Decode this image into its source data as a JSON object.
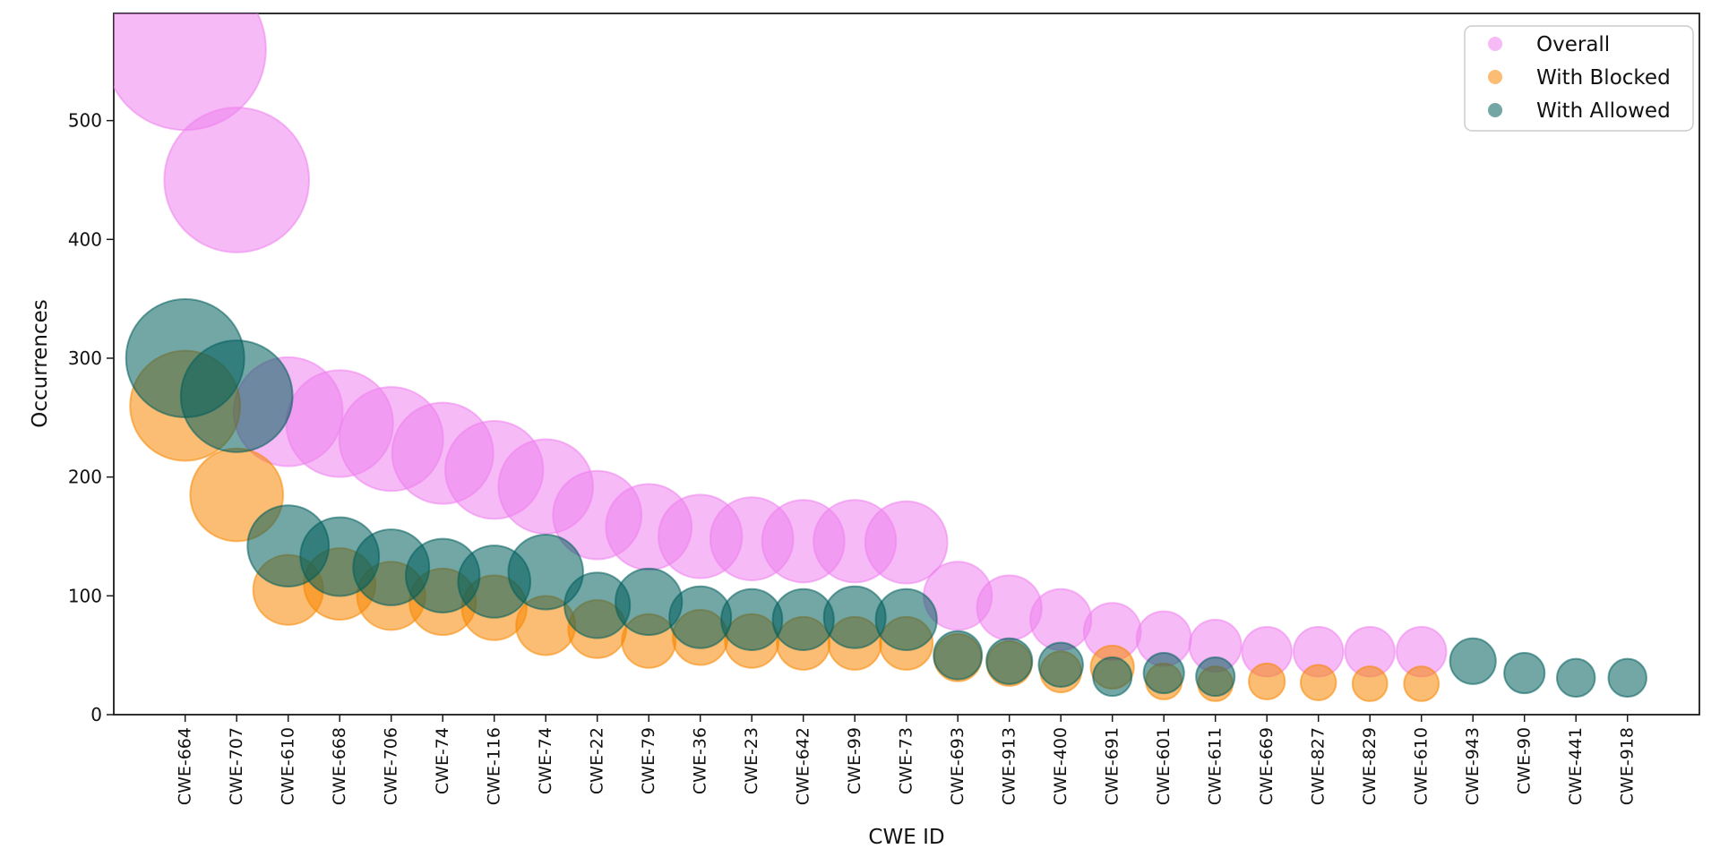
{
  "figure": {
    "x_axis_label": "CWE ID",
    "y_axis_label": "Occurrences",
    "y_ticks": [
      0,
      100,
      200,
      300,
      400,
      500
    ]
  },
  "legend": {
    "items": [
      {
        "label": "Overall"
      },
      {
        "label": "With Blocked"
      },
      {
        "label": "With Allowed"
      }
    ]
  },
  "chart_data": {
    "type": "scatter",
    "subtype": "bubble",
    "title": "",
    "xlabel": "CWE ID",
    "ylabel": "Occurrences",
    "ylim": [
      0,
      590
    ],
    "grid": false,
    "legend_position": "upper right",
    "size_encoding": "bubble radius proportional to sqrt(occurrences)",
    "categories": [
      "CWE-664",
      "CWE-707",
      "CWE-610",
      "CWE-668",
      "CWE-706",
      "CWE-74",
      "CWE-116",
      "CWE-74",
      "CWE-22",
      "CWE-79",
      "CWE-36",
      "CWE-23",
      "CWE-642",
      "CWE-99",
      "CWE-73",
      "CWE-693",
      "CWE-913",
      "CWE-400",
      "CWE-691",
      "CWE-601",
      "CWE-611",
      "CWE-669",
      "CWE-827",
      "CWE-829",
      "CWE-610",
      "CWE-943",
      "CWE-90",
      "CWE-441",
      "CWE-918"
    ],
    "series": [
      {
        "name": "Overall",
        "color": "#EE82EE",
        "values": [
          560,
          450,
          255,
          245,
          232,
          220,
          206,
          192,
          168,
          158,
          150,
          148,
          146,
          146,
          145,
          100,
          90,
          80,
          70,
          64,
          58,
          53,
          53,
          53,
          53,
          null,
          null,
          null,
          null
        ]
      },
      {
        "name": "With Blocked",
        "color": "#F78700",
        "values": [
          260,
          185,
          105,
          110,
          100,
          95,
          90,
          75,
          72,
          62,
          65,
          62,
          60,
          60,
          60,
          48,
          43,
          36,
          40,
          28,
          26,
          28,
          27,
          26,
          26,
          null,
          null,
          null,
          null
        ]
      },
      {
        "name": "With Allowed",
        "color": "#005F5D",
        "values": [
          300,
          268,
          142,
          133,
          124,
          117,
          112,
          120,
          92,
          95,
          82,
          80,
          80,
          82,
          80,
          50,
          45,
          42,
          32,
          35,
          32,
          null,
          null,
          null,
          null,
          45,
          35,
          31,
          31
        ]
      }
    ]
  }
}
